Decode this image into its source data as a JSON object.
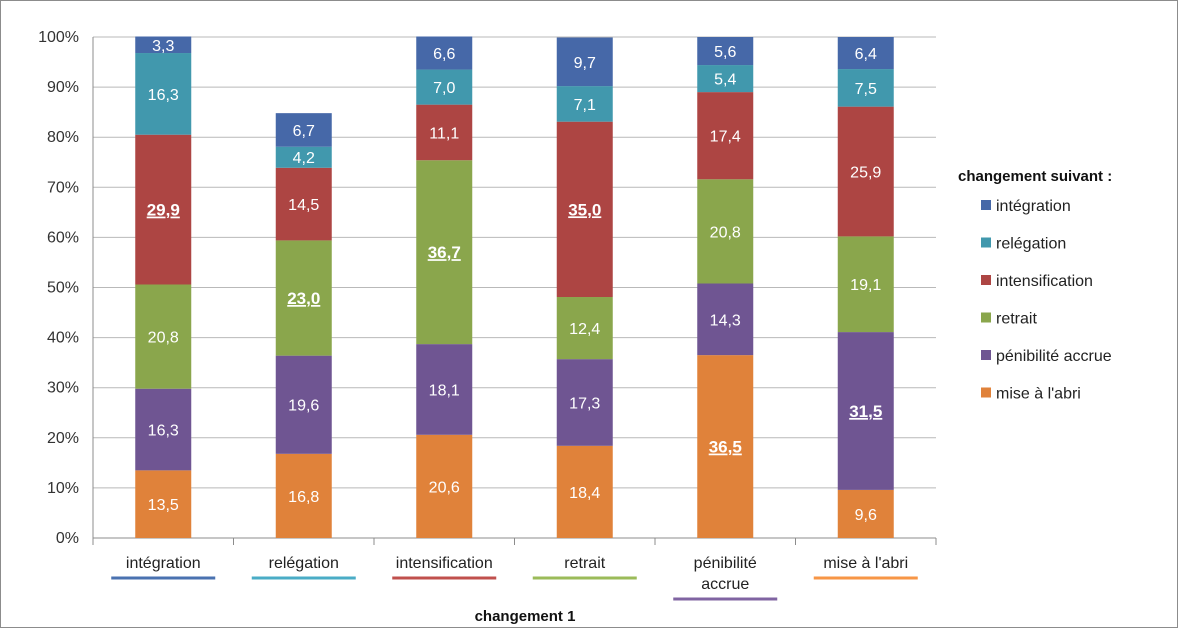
{
  "chart_data": {
    "type": "bar",
    "stacked": true,
    "normalized_percent": true,
    "title": "",
    "xlabel": "changement 1",
    "ylabel": "",
    "ylim": [
      0,
      100
    ],
    "y_ticks": [
      "0%",
      "10%",
      "20%",
      "30%",
      "40%",
      "50%",
      "60%",
      "70%",
      "80%",
      "90%",
      "100%"
    ],
    "grid": true,
    "legend_placement": "right",
    "legend_title": "changement suivant :",
    "categories": [
      [
        "intégration"
      ],
      [
        "relégation"
      ],
      [
        "intensification"
      ],
      [
        "retrait"
      ],
      [
        "pénibilité",
        "accrue"
      ],
      [
        "mise à l'abri"
      ]
    ],
    "category_underline_colors": [
      "#4a72b0",
      "#4aacc6",
      "#c0504d",
      "#9bbb59",
      "#8064a2",
      "#f79646"
    ],
    "series": [
      {
        "name": "mise à l'abri",
        "color": "#e0823a",
        "values": [
          13.5,
          16.8,
          20.6,
          18.4,
          36.5,
          9.6
        ],
        "labels": [
          "13,5",
          "16,8",
          "20,6",
          "18,4",
          "36,5",
          "9,6"
        ],
        "bold": [
          false,
          false,
          false,
          false,
          true,
          false
        ]
      },
      {
        "name": "pénibilité accrue",
        "color": "#6f5592",
        "values": [
          16.3,
          19.6,
          18.1,
          17.3,
          14.3,
          31.5
        ],
        "labels": [
          "16,3",
          "19,6",
          "18,1",
          "17,3",
          "14,3",
          "31,5"
        ],
        "bold": [
          false,
          false,
          false,
          false,
          false,
          true
        ]
      },
      {
        "name": "retrait",
        "color": "#8aa64c",
        "values": [
          20.8,
          23.0,
          36.7,
          12.4,
          20.8,
          19.1
        ],
        "labels": [
          "20,8",
          "23,0",
          "36,7",
          "12,4",
          "20,8",
          "19,1"
        ],
        "bold": [
          false,
          true,
          true,
          false,
          false,
          false
        ]
      },
      {
        "name": "intensification",
        "color": "#ad4543",
        "values": [
          29.9,
          14.5,
          11.1,
          35.0,
          17.4,
          25.9
        ],
        "labels": [
          "29,9",
          "14,5",
          "11,1",
          "35,0",
          "17,4",
          "25,9"
        ],
        "bold": [
          true,
          false,
          false,
          true,
          false,
          false
        ]
      },
      {
        "name": "relégation",
        "color": "#4198ad",
        "values": [
          16.3,
          4.2,
          7.0,
          7.1,
          5.4,
          7.5
        ],
        "labels": [
          "16,3",
          "4,2",
          "7,0",
          "7,1",
          "5,4",
          "7,5"
        ],
        "bold": [
          false,
          false,
          false,
          false,
          false,
          false
        ]
      },
      {
        "name": "intégration",
        "color": "#4668a8",
        "values": [
          3.3,
          6.7,
          6.6,
          9.7,
          5.6,
          6.4
        ],
        "labels": [
          "3,3",
          "6,7",
          "6,6",
          "9,7",
          "5,6",
          "6,4"
        ],
        "bold": [
          false,
          false,
          false,
          false,
          false,
          false
        ]
      }
    ],
    "legend_order": [
      "intégration",
      "relégation",
      "intensification",
      "retrait",
      "pénibilité accrue",
      "mise à l'abri"
    ]
  }
}
